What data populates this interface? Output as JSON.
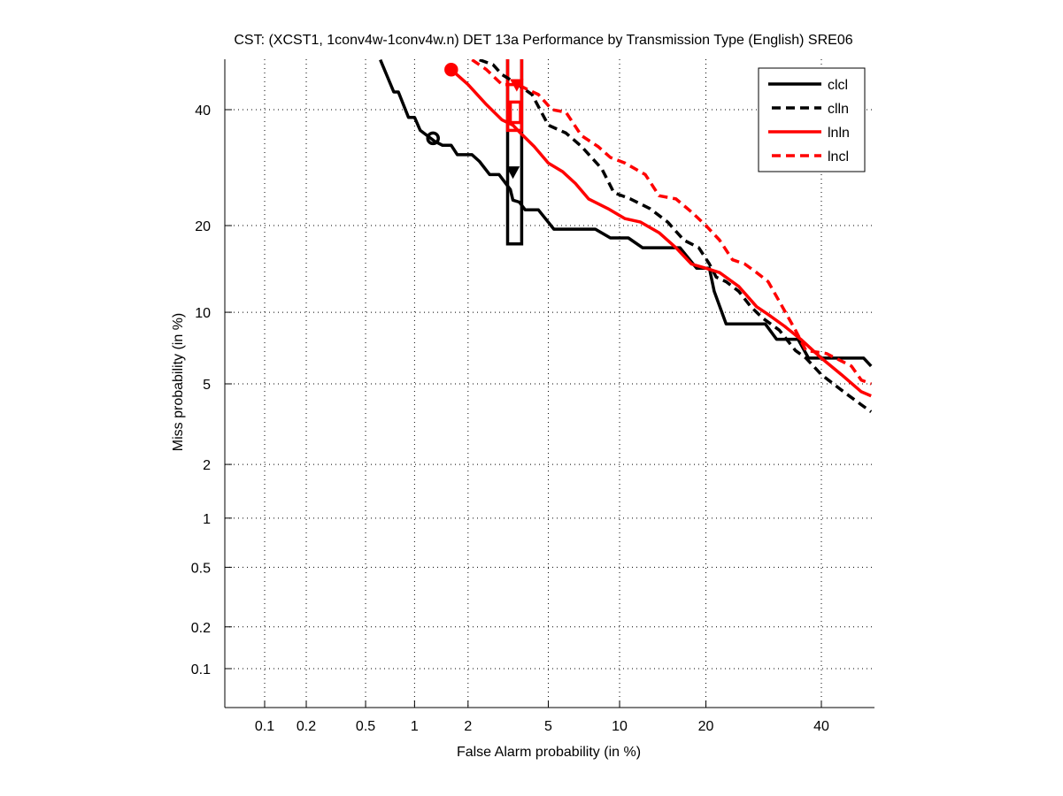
{
  "chart_data": {
    "type": "line",
    "title": "CST: (XCST1, 1conv4w-1conv4w.n) DET 13a Performance by Transmission Type (English) SRE06",
    "xlabel": "False Alarm probability (in %)",
    "ylabel": "Miss probability (in %)",
    "xscale": "probit",
    "yscale": "probit",
    "xlim": [
      0.05,
      50
    ],
    "ylim": [
      0.05,
      50
    ],
    "x_ticks": [
      0.1,
      0.2,
      0.5,
      1,
      2,
      5,
      10,
      20,
      40
    ],
    "x_tick_labels": [
      "0.1",
      "0.2",
      "0.5",
      "1",
      "2",
      "5",
      "10",
      "20",
      "40"
    ],
    "y_ticks": [
      0.1,
      0.2,
      0.5,
      1,
      2,
      5,
      10,
      20,
      40
    ],
    "y_tick_labels": [
      "0.1",
      "0.2",
      "0.5",
      "1",
      "2",
      "5",
      "10",
      "20",
      "40"
    ],
    "grid": true,
    "legend_position": "top-right",
    "series": [
      {
        "name": "clcl",
        "color": "#000000",
        "style": "solid",
        "points": [
          [
            0.62,
            50
          ],
          [
            0.75,
            43.5
          ],
          [
            0.8,
            43.5
          ],
          [
            0.92,
            38.5
          ],
          [
            1.0,
            38.5
          ],
          [
            1.08,
            36
          ],
          [
            1.3,
            34
          ],
          [
            1.45,
            33.2
          ],
          [
            1.62,
            33.2
          ],
          [
            1.75,
            31.5
          ],
          [
            2.1,
            31.5
          ],
          [
            2.3,
            30.3
          ],
          [
            2.6,
            28
          ],
          [
            2.9,
            28
          ],
          [
            3.3,
            25.5
          ],
          [
            3.4,
            23.8
          ],
          [
            3.65,
            23.5
          ],
          [
            3.9,
            22.3
          ],
          [
            4.5,
            22.3
          ],
          [
            5.3,
            19.5
          ],
          [
            8.0,
            19.5
          ],
          [
            9.2,
            18.3
          ],
          [
            10.8,
            18.3
          ],
          [
            12.2,
            17.0
          ],
          [
            16.5,
            17.0
          ],
          [
            18.7,
            14.5
          ],
          [
            20.5,
            14.5
          ],
          [
            21.2,
            12
          ],
          [
            23.0,
            9.0
          ],
          [
            29.5,
            9.0
          ],
          [
            31.5,
            7.8
          ],
          [
            35.5,
            7.8
          ],
          [
            37.5,
            6.5
          ],
          [
            48.5,
            6.5
          ],
          [
            50,
            6.0
          ]
        ],
        "marker": {
          "type": "circle",
          "x": 1.28,
          "y": 34.5
        }
      },
      {
        "name": "clln",
        "color": "#000000",
        "style": "dashed",
        "points": [
          [
            2.3,
            50
          ],
          [
            2.7,
            49
          ],
          [
            3.0,
            47
          ],
          [
            3.6,
            45
          ],
          [
            4.2,
            43
          ],
          [
            5.0,
            37
          ],
          [
            6.0,
            35.5
          ],
          [
            7.0,
            33
          ],
          [
            8.5,
            29
          ],
          [
            9.5,
            25
          ],
          [
            11,
            24
          ],
          [
            13,
            22.5
          ],
          [
            15,
            20.5
          ],
          [
            17,
            18
          ],
          [
            19,
            17
          ],
          [
            20.5,
            15
          ],
          [
            21.5,
            13.5
          ],
          [
            23,
            13
          ],
          [
            25,
            12
          ],
          [
            27,
            10.5
          ],
          [
            29,
            9.5
          ],
          [
            32,
            8.5
          ],
          [
            35,
            7
          ],
          [
            37,
            6.5
          ],
          [
            40,
            5.5
          ],
          [
            45,
            4.5
          ],
          [
            48,
            4.0
          ],
          [
            50,
            3.7
          ]
        ],
        "marker": {
          "type": "down-triangle",
          "x": 3.4,
          "y": 28.5
        }
      },
      {
        "name": "lnln",
        "color": "#ff0000",
        "style": "solid",
        "points": [
          [
            1.62,
            48
          ],
          [
            2.0,
            45
          ],
          [
            2.5,
            41
          ],
          [
            3.0,
            38
          ],
          [
            3.4,
            37
          ],
          [
            3.7,
            35.5
          ],
          [
            4.3,
            33
          ],
          [
            5.0,
            30
          ],
          [
            5.8,
            28.5
          ],
          [
            6.6,
            26.5
          ],
          [
            7.5,
            24
          ],
          [
            9.0,
            22.5
          ],
          [
            10.5,
            21
          ],
          [
            12,
            20.5
          ],
          [
            14,
            19
          ],
          [
            16,
            17
          ],
          [
            18,
            15
          ],
          [
            20,
            14.5
          ],
          [
            22,
            14
          ],
          [
            25,
            12.5
          ],
          [
            28,
            10.5
          ],
          [
            30,
            9.8
          ],
          [
            33,
            8.8
          ],
          [
            36,
            7.8
          ],
          [
            40,
            6.5
          ],
          [
            44,
            5.5
          ],
          [
            48,
            4.6
          ],
          [
            50,
            4.4
          ]
        ],
        "marker": {
          "type": "circle",
          "x": 1.62,
          "y": 48
        }
      },
      {
        "name": "lncl",
        "color": "#ff0000",
        "style": "dashed",
        "points": [
          [
            2.1,
            50
          ],
          [
            2.5,
            48
          ],
          [
            3.0,
            45
          ],
          [
            3.6,
            45
          ],
          [
            4.0,
            44
          ],
          [
            4.5,
            43
          ],
          [
            5.2,
            40
          ],
          [
            6.0,
            39.5
          ],
          [
            7.0,
            35
          ],
          [
            8.2,
            33
          ],
          [
            9.2,
            31
          ],
          [
            10.5,
            30
          ],
          [
            12.5,
            28
          ],
          [
            14,
            24.5
          ],
          [
            16,
            24
          ],
          [
            18,
            22
          ],
          [
            20,
            20
          ],
          [
            22,
            18
          ],
          [
            24,
            15.5
          ],
          [
            26,
            15
          ],
          [
            28,
            14
          ],
          [
            30,
            13
          ],
          [
            32,
            11
          ],
          [
            35,
            8.5
          ],
          [
            37,
            7
          ],
          [
            41,
            6.8
          ],
          [
            46,
            6.0
          ],
          [
            48,
            5.2
          ],
          [
            50,
            5.0
          ]
        ],
        "marker": {
          "type": "down-triangle",
          "x": 3.55,
          "y": 45
        }
      }
    ],
    "annotations": [
      {
        "name": "clcl-confidence-box",
        "color": "#000000",
        "x_range": [
          3.2,
          3.75
        ],
        "y_range": [
          17.5,
          55
        ]
      },
      {
        "name": "lnln-confidence-box",
        "color": "#ff0000",
        "x_range": [
          3.2,
          3.75
        ],
        "y_range": [
          36,
          55
        ]
      },
      {
        "name": "lnln-inner-box",
        "color": "#ff0000",
        "x_range": [
          3.3,
          3.7
        ],
        "y_range": [
          37.5,
          41.5
        ]
      }
    ]
  }
}
